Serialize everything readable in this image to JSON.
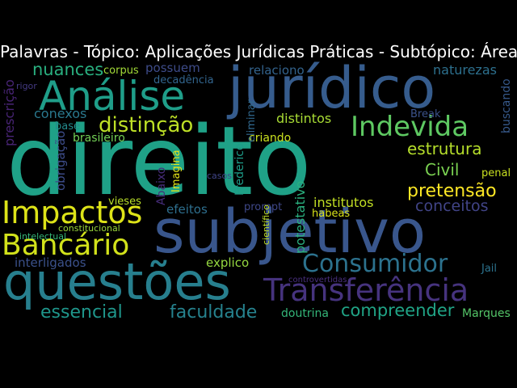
{
  "title": "Palavras - Tópico: Aplicações Jurídicas Práticas - Subtópico: Áreas",
  "colors": {
    "background": "#000000",
    "title": "#ffffff"
  },
  "words": [
    {
      "id": "w-direito",
      "text": "direito",
      "color": "#1fa187"
    },
    {
      "id": "w-juridico",
      "text": "jurídico",
      "color": "#365c8d"
    },
    {
      "id": "w-subjetivo",
      "text": "subjetivo",
      "color": "#39568c"
    },
    {
      "id": "w-questoes",
      "text": "questões",
      "color": "#277f8e"
    },
    {
      "id": "w-analise",
      "text": "Análise",
      "color": "#1f9e89"
    },
    {
      "id": "w-impactos",
      "text": "Impactos",
      "color": "#dde318"
    },
    {
      "id": "w-bancario",
      "text": "Bancário",
      "color": "#d2e21b"
    },
    {
      "id": "w-transferencia",
      "text": "Transferência",
      "color": "#46337e"
    },
    {
      "id": "w-consumidor",
      "text": "Consumidor",
      "color": "#2c728e"
    },
    {
      "id": "w-indevida",
      "text": "Indevida",
      "color": "#5ec962"
    },
    {
      "id": "w-distincao",
      "text": "distinção",
      "color": "#bddf26"
    },
    {
      "id": "w-nuances",
      "text": "nuances",
      "color": "#29af7f"
    },
    {
      "id": "w-estrutura",
      "text": "estrutura",
      "color": "#b5de2b"
    },
    {
      "id": "w-pretensao",
      "text": "pretensão",
      "color": "#fde725"
    },
    {
      "id": "w-civil",
      "text": "Civil",
      "color": "#7ad151"
    },
    {
      "id": "w-conceitos",
      "text": "conceitos",
      "color": "#414487"
    },
    {
      "id": "w-essencial",
      "text": "essencial",
      "color": "#1f968b"
    },
    {
      "id": "w-faculdade",
      "text": "faculdade",
      "color": "#26828e"
    },
    {
      "id": "w-compreender",
      "text": "compreender",
      "color": "#20a486"
    },
    {
      "id": "w-possuem",
      "text": "possuem",
      "color": "#3e4c8a"
    },
    {
      "id": "w-decadencia",
      "text": "decadência",
      "color": "#32658e"
    },
    {
      "id": "w-relaciono",
      "text": "relaciono",
      "color": "#33638d"
    },
    {
      "id": "w-naturezas",
      "text": "naturezas",
      "color": "#2d708e"
    },
    {
      "id": "w-corpus",
      "text": "corpus",
      "color": "#a2da37"
    },
    {
      "id": "w-conexos",
      "text": "conexos",
      "color": "#2a788e"
    },
    {
      "id": "w-base",
      "text": "base",
      "color": "#238a8d"
    },
    {
      "id": "w-brasileiro",
      "text": "brasileiro",
      "color": "#73d056"
    },
    {
      "id": "w-distintos",
      "text": "distintos",
      "color": "#a8db34"
    },
    {
      "id": "w-criando",
      "text": "criando",
      "color": "#cae11f"
    },
    {
      "id": "w-break",
      "text": "Break",
      "color": "#3b528b"
    },
    {
      "id": "w-penal",
      "text": "penal",
      "color": "#c8e020"
    },
    {
      "id": "w-vieses",
      "text": "vieses",
      "color": "#b8de29"
    },
    {
      "id": "w-efeitos",
      "text": "efeitos",
      "color": "#2e6f8e"
    },
    {
      "id": "w-prompt",
      "text": "prompt",
      "color": "#3f4889"
    },
    {
      "id": "w-institutos",
      "text": "institutos",
      "color": "#c2df23"
    },
    {
      "id": "w-habeas",
      "text": "habeas",
      "color": "#d8e219"
    },
    {
      "id": "w-constitucional",
      "text": "constitucional",
      "color": "#9bd93c"
    },
    {
      "id": "w-intelectual",
      "text": "intelectual",
      "color": "#35b779"
    },
    {
      "id": "w-interligados",
      "text": "interligados",
      "color": "#3b518b"
    },
    {
      "id": "w-explico",
      "text": "explico",
      "color": "#95d840"
    },
    {
      "id": "w-controvertidas",
      "text": "controvertidas",
      "color": "#4a2f7f"
    },
    {
      "id": "w-doutrina",
      "text": "doutrina",
      "color": "#34b679"
    },
    {
      "id": "w-jail",
      "text": "Jail",
      "color": "#2c738e"
    },
    {
      "id": "w-marques",
      "text": "Marques",
      "color": "#54c568"
    },
    {
      "id": "w-casos",
      "text": "casos",
      "color": "#404588"
    },
    {
      "id": "w-rigor",
      "text": "rigor",
      "color": "#443a83"
    },
    {
      "id": "w-prescricao",
      "text": "prescrição",
      "color": "#482475"
    },
    {
      "id": "w-obrigacao",
      "text": "obrigação",
      "color": "#3d4d8a"
    },
    {
      "id": "w-imagina",
      "text": "Imagina",
      "color": "#e5e419"
    },
    {
      "id": "w-abaixo",
      "text": "Abaixo",
      "color": "#472d7b"
    },
    {
      "id": "w-frederico",
      "text": "Frederico",
      "color": "#1e9c89"
    },
    {
      "id": "w-eliminar",
      "text": "eliminar",
      "color": "#31688e"
    },
    {
      "id": "w-potestativo",
      "text": "potestativo",
      "color": "#2ab07f"
    },
    {
      "id": "w-cientifico",
      "text": "científico",
      "color": "#c0df25"
    },
    {
      "id": "w-buscando",
      "text": "buscando",
      "color": "#375a8c"
    }
  ]
}
